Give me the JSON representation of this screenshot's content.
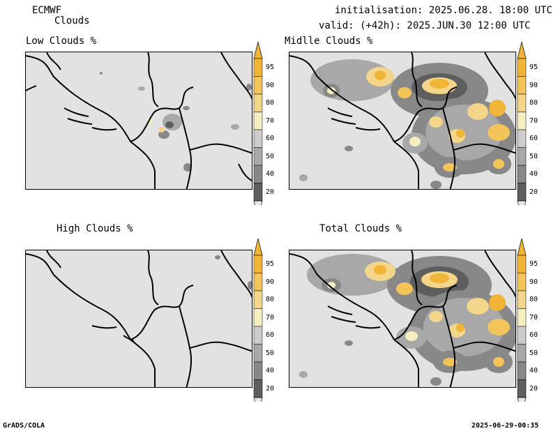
{
  "header": {
    "model": "ECMWF",
    "product": "Clouds",
    "initialisation": "initialisation: 2025.06.28. 18:00 UTC",
    "valid": "valid: (+42h): 2025.JUN.30 12:00 UTC"
  },
  "panels": [
    {
      "title": "Low Clouds %"
    },
    {
      "title": "Midlle Clouds %"
    },
    {
      "title": "High Clouds %"
    },
    {
      "title": "Total Clouds %"
    }
  ],
  "colorbar": {
    "labels": [
      "95",
      "90",
      "80",
      "70",
      "60",
      "50",
      "40",
      "20"
    ],
    "colors": [
      "#f0b436",
      "#f2c45a",
      "#f3d68a",
      "#f5eebe",
      "#cccccc",
      "#a8a8a8",
      "#888888",
      "#5e5e5e"
    ],
    "top_color": "#f0b436",
    "bottom_color": "#e8e8e8"
  },
  "footer": {
    "left": "GrADS/COLA",
    "right": "2025-06-29-00:35"
  }
}
